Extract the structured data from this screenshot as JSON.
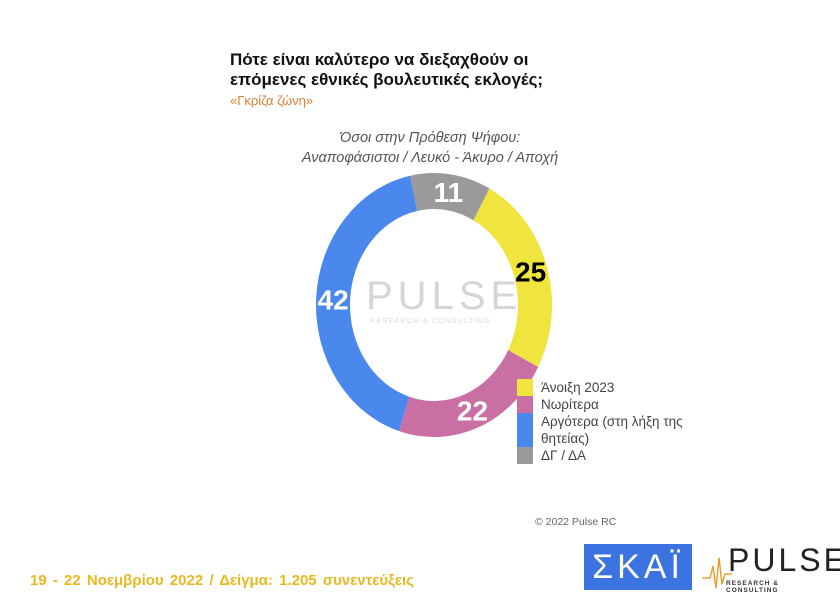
{
  "header": {
    "title_line1": "Πότε είναι καλύτερο να διεξαχθούν οι",
    "title_line2": "επόμενες εθνικές βουλευτικές εκλογές;",
    "subtitle": "«Γκρίζα ζώνη»",
    "note_line1": "Όσοι στην Πρόθεση Ψήφου:",
    "note_line2": "Αναποφάσιστοι / Λευκό - Άκυρο / Αποχή"
  },
  "chart_data": {
    "type": "pie",
    "donut": true,
    "categories": [
      "Άνοιξη 2023",
      "Νωρίτερα",
      "Αργότερα (στη λήξη της θητείας)",
      "ΔΓ / ΔΑ"
    ],
    "values": [
      25,
      22,
      42,
      11
    ],
    "colors": [
      "#f0e43e",
      "#c96fa4",
      "#4a88ee",
      "#9a9a9a"
    ],
    "label_colors": [
      "#000000",
      "#ffffff",
      "#ffffff",
      "#ffffff"
    ],
    "legend_position": "right-bottom"
  },
  "legend": [
    {
      "label": "Άνοιξη 2023",
      "color": "#f0e43e"
    },
    {
      "label": "Νωρίτερα",
      "color": "#c96fa4"
    },
    {
      "label": "Αργότερα (στη λήξη της θητείας)",
      "color": "#4a88ee"
    },
    {
      "label": "ΔΓ / ΔΑ",
      "color": "#9a9a9a"
    }
  ],
  "watermark": {
    "word": "PULSE",
    "tagline": "RESEARCH & CONSULTING"
  },
  "copyright": "© 2022 Pulse RC",
  "footer": "19 - 22  Νοεμβρίου  2022  /  Δείγμα:  1.205 συνεντεύξεις",
  "logos": {
    "skai": "ΣΚΑΪ",
    "pulse": "PULSE",
    "pulse_tagline": "RESEARCH & CONSULTING"
  }
}
